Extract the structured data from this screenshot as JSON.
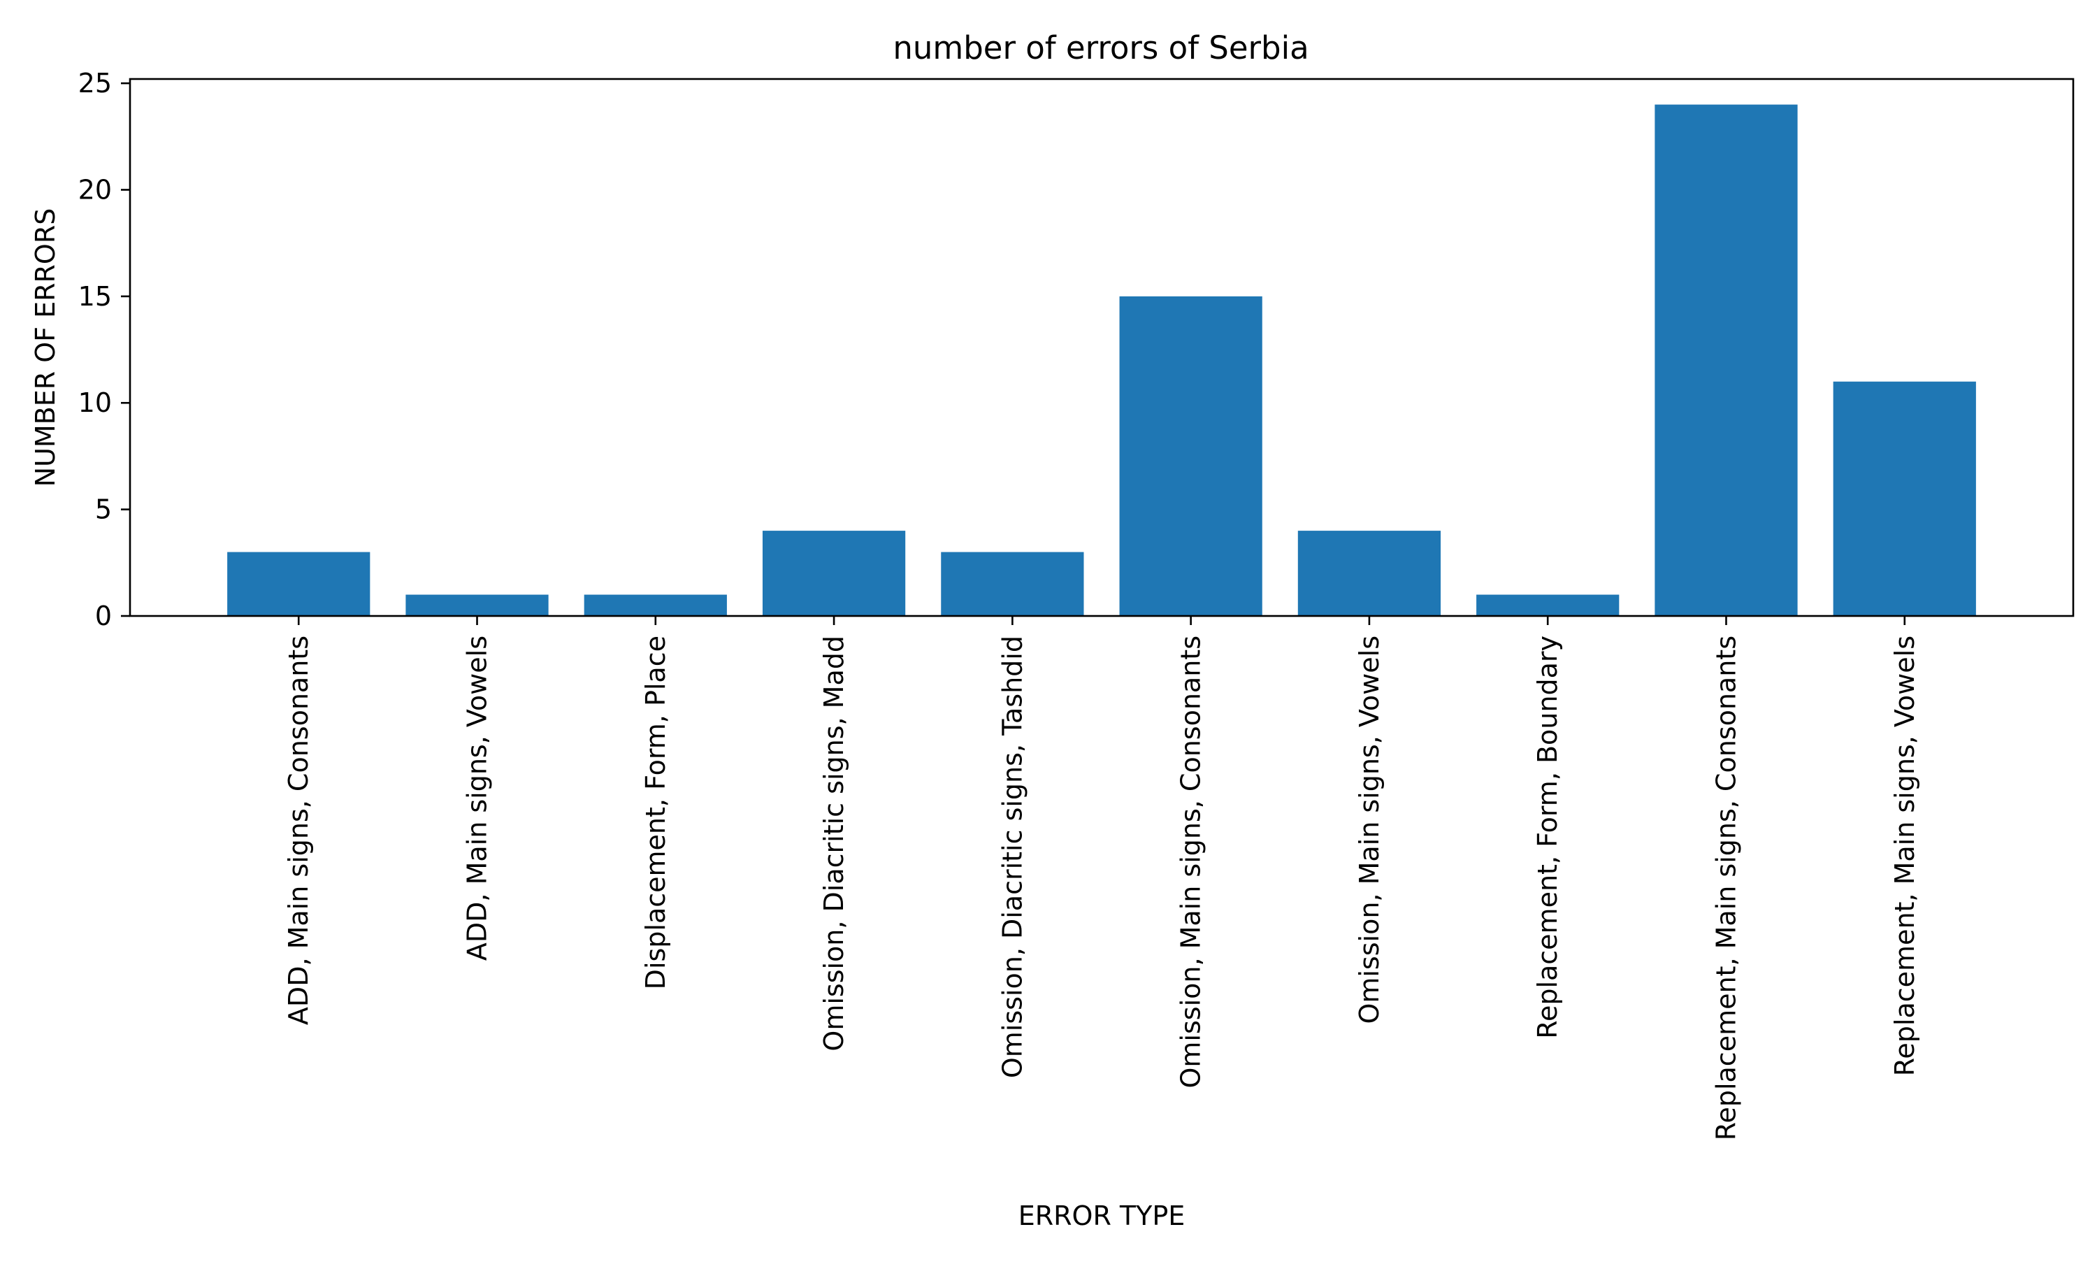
{
  "chart_data": {
    "type": "bar",
    "title": "number of errors of Serbia",
    "xlabel": "ERROR TYPE",
    "ylabel": "NUMBER OF ERRORS",
    "categories": [
      "ADD, Main signs, Consonants",
      "ADD, Main signs, Vowels",
      "Displacement, Form, Place",
      "Omission, Diacritic signs, Madd",
      "Omission, Diacritic signs, Tashdid",
      "Omission, Main signs, Consonants",
      "Omission, Main signs, Vowels",
      "Replacement, Form, Boundary",
      "Replacement, Main signs, Consonants",
      "Replacement, Main signs, Vowels"
    ],
    "values": [
      3,
      1,
      1,
      4,
      3,
      15,
      4,
      1,
      24,
      11
    ],
    "ylim": [
      0,
      25.2
    ],
    "yticks": [
      "0",
      "5",
      "10",
      "15",
      "20",
      "25"
    ],
    "grid": false,
    "legend": "none",
    "bar_color": "#1f77b4"
  }
}
